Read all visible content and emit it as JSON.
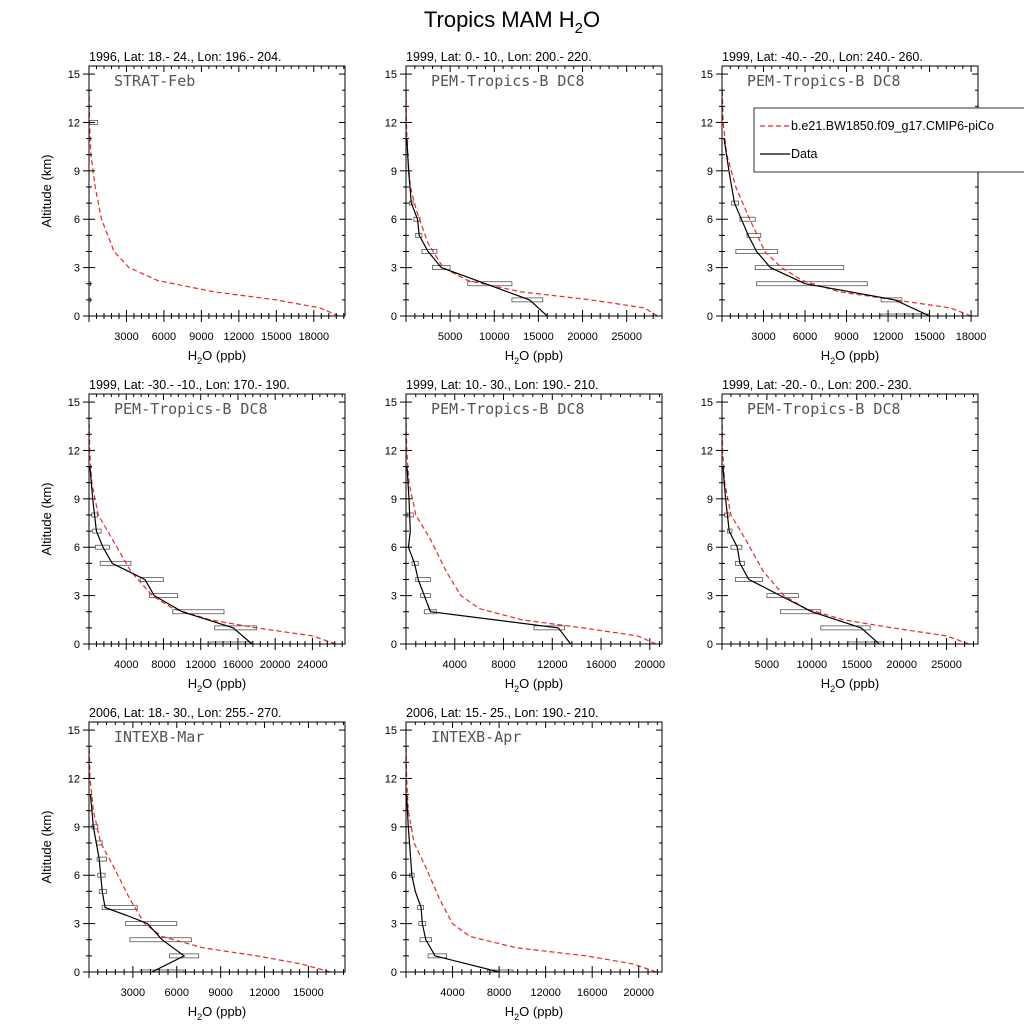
{
  "figure": {
    "title_main": "Tropics MAM H",
    "title_sub": "2",
    "title_end": "O"
  },
  "chart_data": [
    {
      "type": "line",
      "title": "1996, Lat: 18.- 24., Lon: 196.- 204.",
      "campaign": "STRAT-Feb",
      "xlabel": "H2O (ppb)",
      "ylabel": "Altitude (km)",
      "xlim": [
        0,
        20500
      ],
      "xticks": [
        3000,
        6000,
        9000,
        12000,
        15000,
        18000
      ],
      "ylim": [
        0,
        15.5
      ],
      "yticks": [
        0,
        3,
        6,
        9,
        12,
        15
      ],
      "model": {
        "x": [
          20000,
          18500,
          15000,
          10000,
          5500,
          3200,
          2000,
          1000,
          500,
          150,
          40,
          10
        ],
        "y": [
          0,
          0.5,
          1,
          1.5,
          2.2,
          3,
          4,
          6,
          8,
          10,
          12,
          14
        ]
      },
      "data": {
        "x": [],
        "y": []
      },
      "boxes": [
        {
          "y": 12,
          "x1": 0,
          "x2": 700
        },
        {
          "y": 2,
          "x1": 0,
          "x2": 60
        },
        {
          "y": 1,
          "x1": 0,
          "x2": 40
        }
      ]
    },
    {
      "type": "line",
      "title": "1999, Lat: 0.- 10., Lon: 200.- 220.",
      "campaign": "PEM-Tropics-B DC8",
      "xlabel": "H2O (ppb)",
      "ylabel": "Altitude (km)",
      "xlim": [
        0,
        29000
      ],
      "xticks": [
        5000,
        10000,
        15000,
        20000,
        25000
      ],
      "ylim": [
        0,
        15.5
      ],
      "yticks": [
        0,
        3,
        6,
        9,
        12,
        15
      ],
      "model": {
        "x": [
          28500,
          27000,
          21000,
          13000,
          7000,
          4200,
          2500,
          1200,
          500,
          180,
          50,
          10
        ],
        "y": [
          0,
          0.5,
          1,
          1.5,
          2.2,
          3,
          4.5,
          6.5,
          8,
          10,
          12,
          14
        ]
      },
      "data": {
        "x": [
          16000,
          14000,
          9000,
          4000,
          2500,
          1500,
          1300,
          600,
          300,
          100
        ],
        "y": [
          0,
          1,
          2,
          3,
          4,
          5,
          6,
          7,
          9,
          11
        ]
      },
      "boxes": [
        {
          "y": 1,
          "x1": 12000,
          "x2": 15500
        },
        {
          "y": 2,
          "x1": 7000,
          "x2": 12000
        },
        {
          "y": 3,
          "x1": 3000,
          "x2": 5000
        },
        {
          "y": 4,
          "x1": 1800,
          "x2": 3500
        },
        {
          "y": 5,
          "x1": 1100,
          "x2": 1800
        },
        {
          "y": 6,
          "x1": 900,
          "x2": 1600
        },
        {
          "y": 7,
          "x1": 400,
          "x2": 800
        }
      ]
    },
    {
      "type": "line",
      "title": "1999, Lat: -40.- -20., Lon: 240.- 260.",
      "campaign": "PEM-Tropics-B DC8",
      "xlabel": "H2O (ppb)",
      "ylabel": "Altitude (km)",
      "xlim": [
        0,
        18500
      ],
      "xticks": [
        3000,
        6000,
        9000,
        12000,
        15000,
        18000
      ],
      "ylim": [
        0,
        15.5
      ],
      "yticks": [
        0,
        3,
        6,
        9,
        12,
        15
      ],
      "model": {
        "x": [
          18000,
          16500,
          12500,
          8500,
          5800,
          4300,
          3100,
          2000,
          1000,
          350,
          80,
          15
        ],
        "y": [
          0,
          0.5,
          1,
          1.5,
          2.2,
          3,
          4,
          6,
          8,
          10,
          12,
          14
        ]
      },
      "data": {
        "x": [
          15000,
          12500,
          6000,
          3500,
          2500,
          1900,
          1400,
          900,
          500,
          150
        ],
        "y": [
          0,
          1,
          2,
          3,
          4,
          5,
          6,
          7,
          9,
          11
        ]
      },
      "boxes": [
        {
          "y": 0,
          "x1": 11500,
          "x2": 15000
        },
        {
          "y": 1,
          "x1": 11500,
          "x2": 13000
        },
        {
          "y": 2,
          "x1": 2500,
          "x2": 10500
        },
        {
          "y": 3,
          "x1": 2400,
          "x2": 8800
        },
        {
          "y": 4,
          "x1": 1000,
          "x2": 4000
        },
        {
          "y": 5,
          "x1": 1800,
          "x2": 2800
        },
        {
          "y": 6,
          "x1": 1300,
          "x2": 2400
        },
        {
          "y": 7,
          "x1": 700,
          "x2": 1200
        }
      ],
      "legend": [
        {
          "label": "b.e21.BW1850.f09_g17.CMIP6-piCo",
          "style": "dashed-red"
        },
        {
          "label": "Data",
          "style": "solid-black"
        }
      ]
    },
    {
      "type": "line",
      "title": "1999, Lat: -30.- -10., Lon: 170.- 190.",
      "campaign": "PEM-Tropics-B DC8",
      "xlabel": "H2O (ppb)",
      "ylabel": "Altitude (km)",
      "xlim": [
        0,
        27500
      ],
      "xticks": [
        4000,
        8000,
        12000,
        16000,
        20000,
        24000
      ],
      "ylim": [
        0,
        15.5
      ],
      "yticks": [
        0,
        3,
        6,
        9,
        12,
        15
      ],
      "model": {
        "x": [
          26500,
          24000,
          18000,
          13000,
          9000,
          6800,
          4500,
          2500,
          1000,
          300,
          70,
          12
        ],
        "y": [
          0,
          0.5,
          1,
          1.5,
          2.2,
          3,
          4.5,
          6.5,
          8,
          10,
          12,
          14
        ]
      },
      "data": {
        "x": [
          17500,
          15500,
          10000,
          7000,
          6000,
          2500,
          1500,
          800,
          400,
          100
        ],
        "y": [
          0,
          1,
          2,
          3,
          4,
          5,
          6,
          7,
          9,
          11
        ]
      },
      "boxes": [
        {
          "y": 0,
          "x1": 13000,
          "x2": 17500
        },
        {
          "y": 1,
          "x1": 13500,
          "x2": 18000
        },
        {
          "y": 2,
          "x1": 9000,
          "x2": 14500
        },
        {
          "y": 3,
          "x1": 6500,
          "x2": 9500
        },
        {
          "y": 4,
          "x1": 5500,
          "x2": 8000
        },
        {
          "y": 5,
          "x1": 1200,
          "x2": 4500
        },
        {
          "y": 6,
          "x1": 700,
          "x2": 2200
        },
        {
          "y": 7,
          "x1": 400,
          "x2": 1300
        },
        {
          "y": 8,
          "x1": 300,
          "x2": 900
        }
      ]
    },
    {
      "type": "line",
      "title": "1999, Lat: 10.- 30., Lon: 190.- 210.",
      "campaign": "PEM-Tropics-B DC8",
      "xlabel": "H2O (ppb)",
      "ylabel": "Altitude (km)",
      "xlim": [
        0,
        21000
      ],
      "xticks": [
        4000,
        8000,
        12000,
        16000,
        20000
      ],
      "ylim": [
        0,
        15.5
      ],
      "yticks": [
        0,
        3,
        6,
        9,
        12,
        15
      ],
      "model": {
        "x": [
          20500,
          19000,
          14500,
          9500,
          6000,
          4500,
          3300,
          2000,
          800,
          250,
          60,
          10
        ],
        "y": [
          0,
          0.5,
          1,
          1.5,
          2.2,
          3,
          4.5,
          6.5,
          8,
          10,
          12,
          14
        ]
      },
      "data": {
        "x": [
          13500,
          12500,
          2000,
          1500,
          1000,
          700,
          200,
          350,
          250,
          80
        ],
        "y": [
          0,
          1,
          2,
          3,
          4,
          5,
          6,
          7,
          9,
          11
        ]
      },
      "boxes": [
        {
          "y": 1,
          "x1": 10500,
          "x2": 13000
        },
        {
          "y": 2,
          "x1": 1500,
          "x2": 2500
        },
        {
          "y": 3,
          "x1": 1200,
          "x2": 2000
        },
        {
          "y": 4,
          "x1": 800,
          "x2": 2000
        },
        {
          "y": 5,
          "x1": 500,
          "x2": 1000
        },
        {
          "y": 8,
          "x1": 100,
          "x2": 600
        }
      ]
    },
    {
      "type": "line",
      "title": "1999, Lat: -20.- 0., Lon: 200.- 230.",
      "campaign": "PEM-Tropics-B DC8",
      "xlabel": "H2O (ppb)",
      "ylabel": "Altitude (km)",
      "xlim": [
        0,
        28500
      ],
      "xticks": [
        5000,
        10000,
        15000,
        20000,
        25000
      ],
      "ylim": [
        0,
        15.5
      ],
      "yticks": [
        0,
        3,
        6,
        9,
        12,
        15
      ],
      "model": {
        "x": [
          27500,
          25000,
          19000,
          13500,
          9300,
          6900,
          4600,
          2600,
          1000,
          300,
          70,
          12
        ],
        "y": [
          0,
          0.5,
          1,
          1.5,
          2.2,
          3,
          4.5,
          6.5,
          8,
          10,
          12,
          14
        ]
      },
      "data": {
        "x": [
          17500,
          15500,
          10000,
          6500,
          3000,
          2000,
          1700,
          800,
          400,
          100
        ],
        "y": [
          0,
          1,
          2,
          3,
          4,
          5,
          6,
          7,
          9,
          11
        ]
      },
      "boxes": [
        {
          "y": 0,
          "x1": 14000,
          "x2": 18000
        },
        {
          "y": 1,
          "x1": 11000,
          "x2": 16500
        },
        {
          "y": 2,
          "x1": 6500,
          "x2": 11000
        },
        {
          "y": 3,
          "x1": 5000,
          "x2": 8500
        },
        {
          "y": 4,
          "x1": 1500,
          "x2": 4500
        },
        {
          "y": 5,
          "x1": 1500,
          "x2": 2500
        },
        {
          "y": 6,
          "x1": 1000,
          "x2": 2200
        },
        {
          "y": 7,
          "x1": 600,
          "x2": 1100
        },
        {
          "y": 8,
          "x1": 300,
          "x2": 800
        }
      ]
    },
    {
      "type": "line",
      "title": "2006, Lat: 18.- 30., Lon: 255.- 270.",
      "campaign": "INTEXB-Mar",
      "xlabel": "H2O (ppb)",
      "ylabel": "Altitude (km)",
      "xlim": [
        0,
        17500
      ],
      "xticks": [
        3000,
        6000,
        9000,
        12000,
        15000
      ],
      "ylim": [
        0,
        15.5
      ],
      "yticks": [
        0,
        3,
        6,
        9,
        12,
        15
      ],
      "model": {
        "x": [
          16500,
          14500,
          11500,
          7800,
          5000,
          3800,
          2800,
          1700,
          800,
          300,
          70,
          10
        ],
        "y": [
          0,
          0.5,
          1,
          1.5,
          2.2,
          3,
          4.5,
          6.5,
          8,
          10,
          12,
          14
        ]
      },
      "data": {
        "x": [
          4300,
          6500,
          5000,
          4000,
          2600,
          1100,
          900,
          800,
          700,
          300,
          100
        ],
        "y": [
          0,
          1,
          2,
          3,
          3.5,
          4,
          5,
          6,
          7,
          9,
          11
        ]
      },
      "boxes": [
        {
          "y": 0,
          "x1": 3500,
          "x2": 6500
        },
        {
          "y": 1,
          "x1": 5500,
          "x2": 7500
        },
        {
          "y": 2,
          "x1": 2800,
          "x2": 7000
        },
        {
          "y": 3,
          "x1": 2500,
          "x2": 6000
        },
        {
          "y": 4,
          "x1": 900,
          "x2": 3300
        },
        {
          "y": 5,
          "x1": 700,
          "x2": 1200
        },
        {
          "y": 6,
          "x1": 600,
          "x2": 1100
        },
        {
          "y": 7,
          "x1": 550,
          "x2": 1200
        },
        {
          "y": 8,
          "x1": 500,
          "x2": 900
        },
        {
          "y": 9,
          "x1": 200,
          "x2": 600
        }
      ]
    },
    {
      "type": "line",
      "title": "2006, Lat: 15.- 25., Lon: 190.- 210.",
      "campaign": "INTEXB-Apr",
      "xlabel": "H2O (ppb)",
      "ylabel": "Altitude (km)",
      "xlim": [
        0,
        22000
      ],
      "xticks": [
        4000,
        8000,
        12000,
        16000,
        20000
      ],
      "ylim": [
        0,
        15.5
      ],
      "yticks": [
        0,
        3,
        6,
        9,
        12,
        15
      ],
      "model": {
        "x": [
          21500,
          19500,
          15500,
          9500,
          5500,
          4000,
          2900,
          1700,
          700,
          200,
          50,
          10
        ],
        "y": [
          0,
          0.5,
          1,
          1.5,
          2.2,
          3,
          4.5,
          6.5,
          8,
          10,
          12,
          14
        ]
      },
      "data": {
        "x": [
          8000,
          2500,
          1700,
          1400,
          1300,
          800,
          500,
          400,
          200,
          50
        ],
        "y": [
          0,
          1,
          2,
          3,
          4,
          5,
          6,
          7,
          9,
          11
        ]
      },
      "boxes": [
        {
          "y": 0,
          "x1": 7000,
          "x2": 9200
        },
        {
          "y": 1,
          "x1": 1900,
          "x2": 3500
        },
        {
          "y": 2,
          "x1": 1200,
          "x2": 2200
        },
        {
          "y": 3,
          "x1": 1100,
          "x2": 1700
        },
        {
          "y": 4,
          "x1": 1000,
          "x2": 1500
        },
        {
          "y": 6,
          "x1": 300,
          "x2": 700
        }
      ]
    }
  ]
}
